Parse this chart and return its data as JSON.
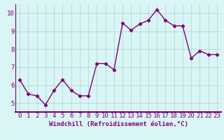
{
  "x": [
    0,
    1,
    2,
    3,
    4,
    5,
    6,
    7,
    8,
    9,
    10,
    11,
    12,
    13,
    14,
    15,
    16,
    17,
    18,
    19,
    20,
    21,
    22,
    23
  ],
  "y": [
    6.3,
    5.5,
    5.4,
    4.9,
    5.7,
    6.3,
    5.7,
    5.4,
    5.4,
    7.2,
    7.2,
    6.85,
    9.45,
    9.05,
    9.4,
    9.6,
    10.2,
    9.6,
    9.3,
    9.3,
    7.5,
    7.9,
    7.7,
    7.7
  ],
  "line_color": "#800080",
  "marker": "D",
  "marker_size": 2.2,
  "bg_color": "#d9f5f5",
  "grid_color": "#b8d4d4",
  "xlabel": "Windchill (Refroidissement éolien,°C)",
  "ylabel": "",
  "xlim": [
    -0.5,
    23.5
  ],
  "ylim": [
    4.5,
    10.5
  ],
  "yticks": [
    5,
    6,
    7,
    8,
    9,
    10
  ],
  "xticks": [
    0,
    1,
    2,
    3,
    4,
    5,
    6,
    7,
    8,
    9,
    10,
    11,
    12,
    13,
    14,
    15,
    16,
    17,
    18,
    19,
    20,
    21,
    22,
    23
  ],
  "xlabel_fontsize": 6.5,
  "tick_fontsize": 6.5,
  "line_width": 1.0,
  "axis_color": "#800080",
  "spine_color": "#800080"
}
